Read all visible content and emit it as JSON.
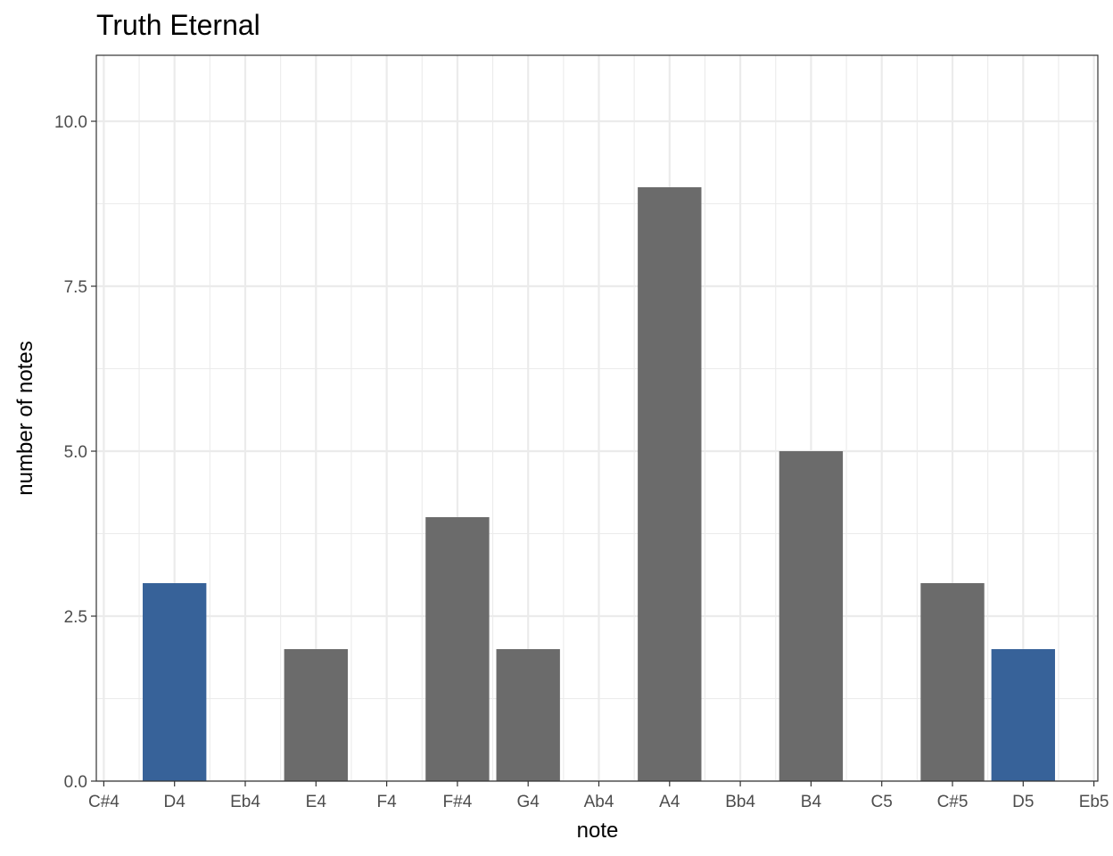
{
  "chart_data": {
    "type": "bar",
    "title": "Truth Eternal",
    "xlabel": "note",
    "ylabel": "number of notes",
    "categories": [
      "C#4",
      "D4",
      "Eb4",
      "E4",
      "F4",
      "F#4",
      "G4",
      "Ab4",
      "A4",
      "Bb4",
      "B4",
      "C5",
      "C#5",
      "D5",
      "Eb5"
    ],
    "values": [
      0,
      3,
      0,
      2,
      0,
      4,
      2,
      0,
      9,
      0,
      5,
      0,
      3,
      2,
      0
    ],
    "highlighted": [
      "D4",
      "D5"
    ],
    "ylim": [
      0,
      11
    ],
    "yticks": [
      "0.0",
      "2.5",
      "5.0",
      "7.5",
      "10.0"
    ],
    "grid": true,
    "colors": {
      "bar": "#6b6b6b",
      "highlight": "#376299",
      "grid": "#ebebeb",
      "border": "#333333"
    }
  }
}
